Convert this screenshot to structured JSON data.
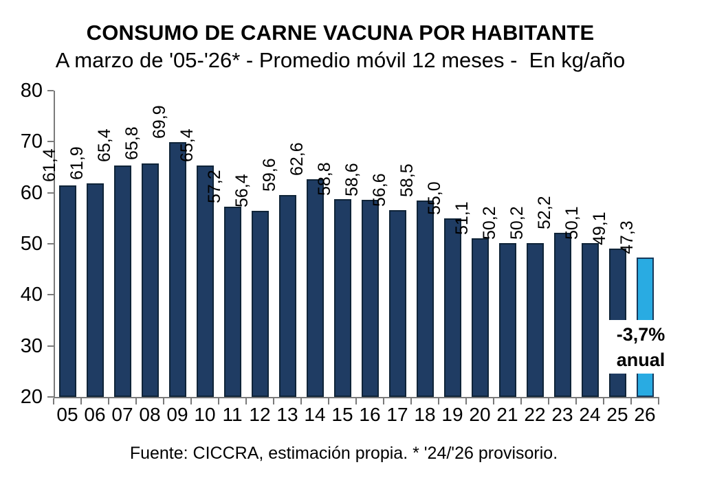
{
  "title": "CONSUMO DE CARNE VACUNA POR HABITANTE",
  "subtitle": "A marzo de '05-'26* - Promedio móvil 12 meses -  En kg/año",
  "source_note": "Fuente: CICCRA, estimación propia. * '24/'26 provisorio.",
  "annotation": {
    "line1": "-3,7%",
    "line2": "anual"
  },
  "colors": {
    "bar_fill": "#1F3C63",
    "bar_border": "#0F2438",
    "highlight_fill": "#29ABE2",
    "highlight_border": "#16395B",
    "axis": "#7a7a7a",
    "text": "#000000",
    "background": "#ffffff"
  },
  "chart_data": {
    "type": "bar",
    "title": "CONSUMO DE CARNE VACUNA POR HABITANTE",
    "subtitle": "A marzo de '05-'26* - Promedio móvil 12 meses -  En kg/año",
    "categories": [
      "05",
      "06",
      "07",
      "08",
      "09",
      "10",
      "11",
      "12",
      "13",
      "14",
      "15",
      "16",
      "17",
      "18",
      "19",
      "20",
      "21",
      "22",
      "23",
      "24",
      "25",
      "26"
    ],
    "values": [
      61.4,
      61.9,
      65.4,
      65.8,
      69.9,
      65.4,
      57.2,
      56.4,
      59.6,
      62.6,
      58.8,
      58.6,
      56.6,
      58.5,
      55.0,
      51.1,
      50.2,
      50.2,
      52.2,
      50.1,
      49.1,
      47.3
    ],
    "value_labels": [
      "61,4",
      "61,9",
      "65,4",
      "65,8",
      "69,9",
      "65,4",
      "57,2",
      "56,4",
      "59,6",
      "62,6",
      "58,8",
      "58,6",
      "56,6",
      "58,5",
      "55,0",
      "51,1",
      "50,2",
      "50,2",
      "52,2",
      "50,1",
      "49,1",
      "47,3"
    ],
    "highlight_index": 21,
    "xlabel": "",
    "ylabel": "kg/año",
    "ylim": [
      20,
      80
    ],
    "yticks": [
      20,
      30,
      40,
      50,
      60,
      70,
      80
    ],
    "grid": false,
    "legend": false,
    "annotation": "-3,7% anual",
    "source": "Fuente: CICCRA, estimación propia. * '24/'26 provisorio."
  }
}
